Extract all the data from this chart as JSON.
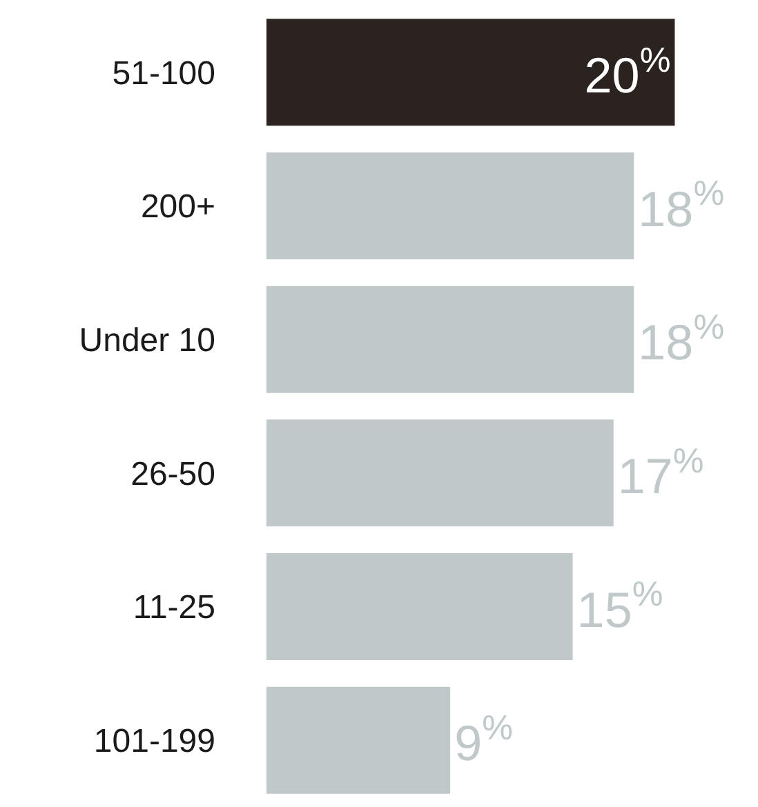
{
  "chart_data": {
    "type": "bar",
    "orientation": "horizontal",
    "categories": [
      "51-100",
      "200+",
      "Under 10",
      "26-50",
      "11-25",
      "101-199"
    ],
    "values": [
      20,
      18,
      18,
      17,
      15,
      9
    ],
    "colors": [
      "#2b2320",
      "#c0c8ca",
      "#c0c8ca",
      "#c0c8ca",
      "#c0c8ca",
      "#c0c8ca"
    ],
    "value_labels": [
      "20$^{%}$",
      "18$^{%}$",
      "18$^{%}$",
      "17$^{%}$",
      "15$^{%}$",
      "9$^{%}$"
    ],
    "tick_labels": "y"
  }
}
